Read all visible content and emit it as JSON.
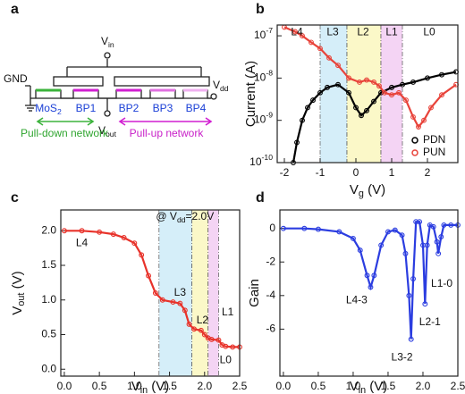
{
  "diagram": {
    "panel_label": "a",
    "vin": "Vin",
    "gnd": "GND",
    "vdd": "Vdd",
    "vout": "Vout",
    "channels": [
      "MoS2",
      "BP1",
      "BP2",
      "BP3",
      "BP4"
    ],
    "pull_down": "Pull-down network",
    "pull_up": "Pull-up network"
  },
  "chart_data": [
    {
      "type": "line",
      "panel_label": "b",
      "x_label": "Vg (V)",
      "y_label": "Current (A)",
      "xlim": [
        -2.2,
        2.85
      ],
      "xticks": [
        -2,
        -1,
        0,
        1,
        2
      ],
      "yscale": "log",
      "ylim": [
        1e-10,
        1.8e-07
      ],
      "yticks": [
        {
          "value": 1e-10,
          "label": "10-10"
        },
        {
          "value": 1e-09,
          "label": "10-9"
        },
        {
          "value": 1e-08,
          "label": "10-8"
        },
        {
          "value": 1e-07,
          "label": "10-7"
        }
      ],
      "bands": [
        {
          "from": -1,
          "to": -0.25,
          "color": "#d5eef9"
        },
        {
          "from": -0.25,
          "to": 0.7,
          "color": "#fbf8c8"
        },
        {
          "from": 0.7,
          "to": 1.3,
          "color": "#f4d4f4"
        }
      ],
      "annotations": [
        {
          "text": "L4",
          "x": -1.65,
          "y": 1.2e-07
        },
        {
          "text": "L3",
          "x": -0.65,
          "y": 1.2e-07
        },
        {
          "text": "L2",
          "x": 0.2,
          "y": 1.2e-07
        },
        {
          "text": "L1",
          "x": 1.0,
          "y": 1.2e-07
        },
        {
          "text": "L0",
          "x": 2.05,
          "y": 1.2e-07
        }
      ],
      "legend": "lower right",
      "series": [
        {
          "name": "PDN",
          "color": "#000000",
          "x": [
            -1.75,
            -1.65,
            -1.5,
            -1.35,
            -1.2,
            -1.0,
            -0.8,
            -0.5,
            -0.2,
            0.0,
            0.15,
            0.3,
            0.5,
            0.7,
            1.0,
            1.3,
            1.6,
            2.0,
            2.4,
            2.8
          ],
          "values": [
            1e-10,
            3e-10,
            1e-09,
            2e-09,
            3e-09,
            4.5e-09,
            6e-09,
            7e-09,
            4.5e-09,
            2e-09,
            1.3e-09,
            1.7e-09,
            2.8e-09,
            4.5e-09,
            6e-09,
            7e-09,
            8e-09,
            1e-08,
            1.2e-08,
            1.4e-08
          ]
        },
        {
          "name": "PUN",
          "color": "#e8433a",
          "x": [
            -2.0,
            -1.7,
            -1.5,
            -1.25,
            -1.0,
            -0.75,
            -0.5,
            -0.2,
            0.1,
            0.3,
            0.5,
            0.65,
            0.8,
            1.0,
            1.2,
            1.4,
            1.6,
            1.75,
            1.9,
            2.1,
            2.4,
            2.8
          ],
          "values": [
            1.6e-07,
            1.25e-07,
            1e-07,
            7e-08,
            5e-08,
            3e-08,
            2e-08,
            1e-08,
            8e-09,
            9e-09,
            8e-09,
            6.5e-09,
            4.5e-09,
            4e-09,
            4.5e-09,
            3e-09,
            1.2e-09,
            7e-10,
            1e-09,
            2e-09,
            4e-09,
            7e-09
          ]
        }
      ]
    },
    {
      "type": "line",
      "panel_label": "c",
      "x_label": "Vin (V)",
      "y_label": "Vout (V)",
      "xlim": [
        -0.05,
        2.5
      ],
      "xticks": [
        {
          "value": 0,
          "label": "0.0"
        },
        0.5,
        {
          "value": 1,
          "label": "1.0"
        },
        1.5,
        {
          "value": 2,
          "label": "2.0"
        },
        2.5
      ],
      "ylim": [
        -0.1,
        2.3
      ],
      "yticks": [
        {
          "value": 0,
          "label": "0.0"
        },
        0.5,
        {
          "value": 1,
          "label": "1.0"
        },
        1.5,
        {
          "value": 2,
          "label": "2.0"
        }
      ],
      "bands": [
        {
          "from": 1.35,
          "to": 1.82,
          "color": "#d5eef9"
        },
        {
          "from": 1.82,
          "to": 2.05,
          "color": "#fbf8c8"
        },
        {
          "from": 2.05,
          "to": 2.2,
          "color": "#f4d4f4"
        }
      ],
      "annotations": [
        {
          "text": "@ Vdd=2.0V",
          "x": 1.72,
          "y": 2.2
        },
        {
          "text": "L4",
          "x": 0.25,
          "y": 1.82
        },
        {
          "text": "L3",
          "x": 1.65,
          "y": 1.1
        },
        {
          "text": "L2",
          "x": 1.97,
          "y": 0.7
        },
        {
          "text": "L1",
          "x": 2.33,
          "y": 0.82
        },
        {
          "text": "L0",
          "x": 2.3,
          "y": 0.13
        }
      ],
      "series": [
        {
          "name": "Vout",
          "color": "#e8322a",
          "x": [
            0,
            0.25,
            0.5,
            0.7,
            0.85,
            1.0,
            1.1,
            1.2,
            1.3,
            1.4,
            1.55,
            1.65,
            1.72,
            1.78,
            1.85,
            1.95,
            2.0,
            2.05,
            2.1,
            2.2,
            2.25,
            2.3,
            2.4,
            2.5
          ],
          "values": [
            2.0,
            2.0,
            1.98,
            1.95,
            1.9,
            1.82,
            1.65,
            1.35,
            1.1,
            1.0,
            0.97,
            0.95,
            0.85,
            0.65,
            0.58,
            0.56,
            0.5,
            0.45,
            0.43,
            0.42,
            0.35,
            0.33,
            0.32,
            0.32
          ]
        }
      ]
    },
    {
      "type": "line",
      "panel_label": "d",
      "x_label": "Vin (V)",
      "y_label": "Gain",
      "xlim": [
        -0.05,
        2.5
      ],
      "xticks": [
        {
          "value": 0,
          "label": "0.0"
        },
        0.5,
        {
          "value": 1,
          "label": "1.0"
        },
        1.5,
        {
          "value": 2,
          "label": "2.0"
        },
        2.5
      ],
      "ylim": [
        -8.8,
        1.1
      ],
      "yticks": [
        -6,
        -4,
        -2,
        0
      ],
      "annotations": [
        {
          "text": "L4-3",
          "x": 1.05,
          "y": -4.3
        },
        {
          "text": "L3-2",
          "x": 1.7,
          "y": -7.7
        },
        {
          "text": "L2-1",
          "x": 2.1,
          "y": -5.6
        },
        {
          "text": "L1-0",
          "x": 2.27,
          "y": -3.3
        }
      ],
      "series": [
        {
          "name": "Gain",
          "color": "#2b3de0",
          "x": [
            0,
            0.3,
            0.5,
            0.8,
            1.0,
            1.1,
            1.2,
            1.25,
            1.3,
            1.4,
            1.5,
            1.6,
            1.7,
            1.75,
            1.8,
            1.83,
            1.86,
            1.9,
            1.95,
            2.0,
            2.03,
            2.06,
            2.1,
            2.15,
            2.2,
            2.22,
            2.26,
            2.3,
            2.4,
            2.5
          ],
          "values": [
            0,
            0,
            -0.05,
            -0.2,
            -0.6,
            -1.3,
            -2.8,
            -3.5,
            -2.8,
            -1.0,
            -0.2,
            -0.1,
            -0.4,
            -1.5,
            -4,
            -6.6,
            -3,
            0.4,
            0.4,
            -1,
            -4.5,
            -1,
            0.2,
            0.1,
            -0.8,
            -1.5,
            -0.5,
            0.2,
            0.2,
            0.2
          ]
        }
      ]
    }
  ]
}
